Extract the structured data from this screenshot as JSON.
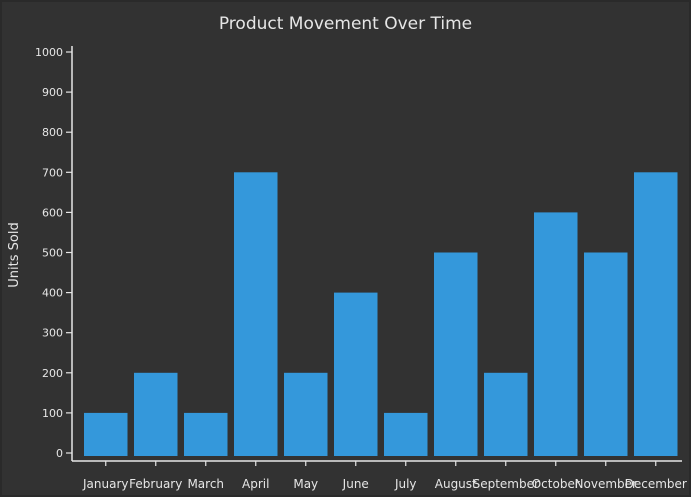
{
  "chart_data": {
    "type": "bar",
    "title": "Product Movement Over Time",
    "xlabel": "",
    "ylabel": "Units Sold",
    "categories": [
      "January",
      "February",
      "March",
      "April",
      "May",
      "June",
      "July",
      "August",
      "September",
      "October",
      "November",
      "December"
    ],
    "values": [
      100,
      200,
      100,
      700,
      200,
      400,
      100,
      500,
      200,
      600,
      500,
      700
    ],
    "ylim": [
      0,
      1000
    ],
    "yticks": [
      0,
      100,
      200,
      300,
      400,
      500,
      600,
      700,
      800,
      900,
      1000
    ],
    "grid": false,
    "legend": "none",
    "colors": {
      "bar": "#3498db",
      "background": "#323232",
      "text": "#e6e6e6",
      "axis": "#e6e6e6"
    }
  }
}
